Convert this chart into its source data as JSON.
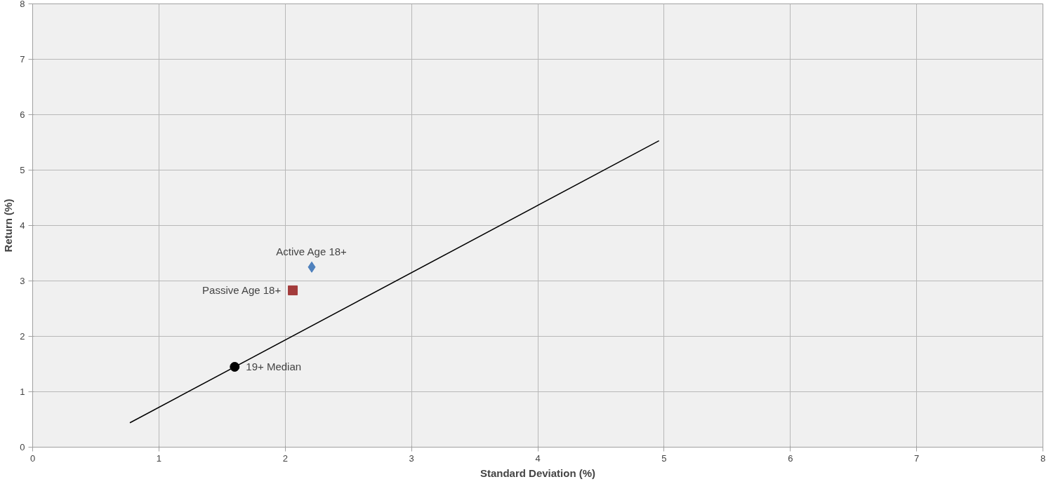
{
  "chart_data": {
    "type": "scatter",
    "xlabel": "Standard Deviation (%)",
    "ylabel": "Return (%)",
    "xlim": [
      0,
      8
    ],
    "xticks": [
      0,
      1,
      2,
      3,
      4,
      5,
      6,
      7,
      8
    ],
    "ylim": [
      0,
      8
    ],
    "yticks": [
      0,
      1,
      2,
      3,
      4,
      5,
      6,
      7,
      8
    ],
    "grid": true,
    "series": [
      {
        "type": "line",
        "color": "#000000",
        "x": [
          0.77,
          4.96
        ],
        "values": [
          0.44,
          5.53
        ],
        "marker": "none"
      },
      {
        "name": "Active Age 18+",
        "color": "#4f81bd",
        "x": [
          2.21
        ],
        "values": [
          3.25
        ],
        "marker": "diamond"
      },
      {
        "name": "Passive Age 18+",
        "color": "#a33b3b",
        "x": [
          2.06
        ],
        "values": [
          2.83
        ],
        "marker": "square"
      },
      {
        "name": "19+ Median",
        "color": "#000000",
        "x": [
          1.6
        ],
        "values": [
          1.45
        ],
        "marker": "circle"
      }
    ]
  }
}
